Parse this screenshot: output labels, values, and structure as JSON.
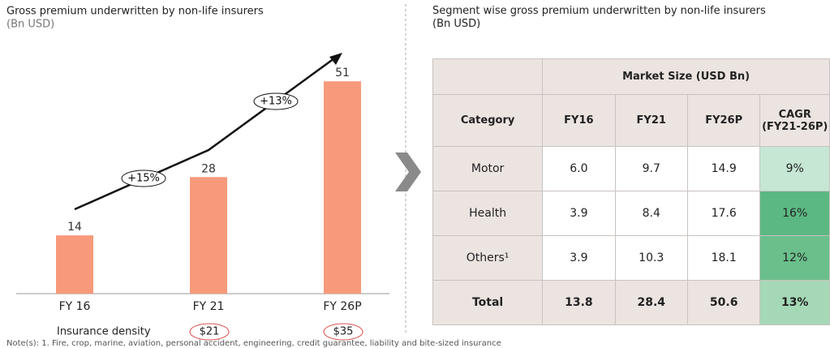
{
  "chart_data": {
    "type": "bar",
    "title": "Gross premium underwritten by non-life insurers",
    "subtitle": "(Bn USD)",
    "categories": [
      "FY 16",
      "FY 21",
      "FY 26P"
    ],
    "values": [
      14,
      28,
      51
    ],
    "color": "#f79a7b",
    "ylim": [
      0,
      60
    ],
    "annotations": [
      "+15%",
      "+13%"
    ],
    "density_label": "Insurance density",
    "density": [
      null,
      "$21",
      "$35"
    ]
  },
  "table": {
    "title": "Segment wise gross premium underwritten by non-life insurers",
    "subtitle": "(Bn USD)",
    "group_header": "Market Size (USD Bn)",
    "columns": [
      "Category",
      "FY16",
      "FY21",
      "FY26P",
      "CAGR (FY21-26P)"
    ],
    "rows": [
      [
        "Motor",
        "6.0",
        "9.7",
        "14.9",
        "9%"
      ],
      [
        "Health",
        "3.9",
        "8.4",
        "17.6",
        "16%"
      ],
      [
        "Others¹",
        "3.9",
        "10.3",
        "18.1",
        "12%"
      ],
      [
        "Total",
        "13.8",
        "28.4",
        "50.6",
        "13%"
      ]
    ],
    "cagr_colors": [
      "#c6e7d3",
      "#5cb882",
      "#6abf8b",
      "#a5d8b6"
    ]
  },
  "note": "Note(s): 1. Fire, crop, marine, aviation, personal accident, engineering, credit guarantee, liability and bite-sized insurance"
}
